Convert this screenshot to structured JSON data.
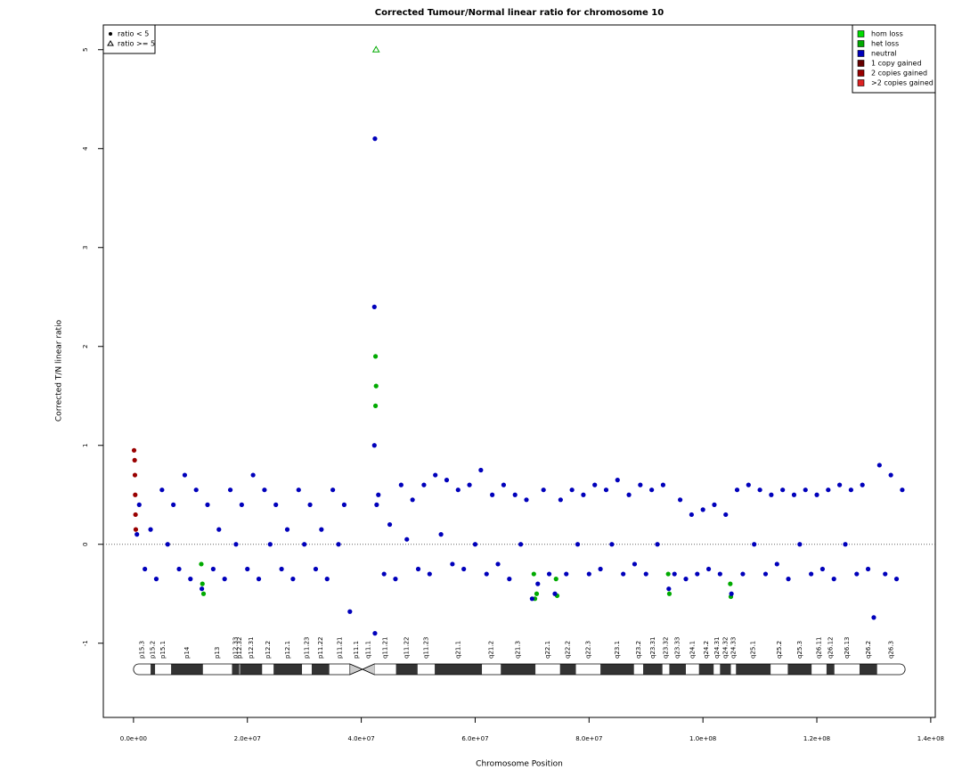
{
  "chart_data": {
    "type": "scatter",
    "title": "Corrected Tumour/Normal linear ratio for chromosome  10",
    "xlabel": "Chromosome Position",
    "ylabel": "Corrected T/N linear ratio",
    "xlim": [
      -5300000.0,
      140800000.0
    ],
    "ylim": [
      -1.75,
      5.25
    ],
    "xticks": [
      {
        "value": 0,
        "label": "0.0e+00"
      },
      {
        "value": 20000000.0,
        "label": "2.0e+07"
      },
      {
        "value": 40000000.0,
        "label": "4.0e+07"
      },
      {
        "value": 60000000.0,
        "label": "6.0e+07"
      },
      {
        "value": 80000000.0,
        "label": "8.0e+07"
      },
      {
        "value": 100000000.0,
        "label": "1.0e+08"
      },
      {
        "value": 120000000.0,
        "label": "1.2e+08"
      },
      {
        "value": 140000000.0,
        "label": "1.4e+08"
      }
    ],
    "yticks": [
      -1,
      0,
      1,
      2,
      3,
      4,
      5
    ],
    "hline": 0,
    "ratio_cap": 5,
    "symbol_legend": [
      {
        "label": "ratio < 5",
        "shape": "dot"
      },
      {
        "label": "ratio >= 5",
        "shape": "triangle"
      }
    ],
    "series": [
      {
        "name": "hom loss",
        "color": "#00dd00",
        "x": [],
        "values": []
      },
      {
        "name": "het loss",
        "color": "#00aa00",
        "x": [
          11900000.0,
          12100000.0,
          12300000.0,
          42500000.0,
          42500000.0,
          42600000.0,
          42600000.0,
          70300000.0,
          70500000.0,
          70800000.0,
          74200000.0,
          74400000.0,
          93900000.0,
          94100000.0,
          104800000.0,
          104900000.0
        ],
        "values": [
          -0.2,
          -0.4,
          -0.5,
          1.4,
          1.9,
          1.6,
          5,
          -0.3,
          -0.55,
          -0.5,
          -0.35,
          -0.52,
          -0.3,
          -0.5,
          -0.4,
          -0.53
        ]
      },
      {
        "name": "neutral",
        "color": "#0000bb",
        "x": [
          600000.0,
          1000000.0,
          2000000.0,
          3000000.0,
          4000000.0,
          5000000.0,
          6000000.0,
          7000000.0,
          8000000.0,
          9000000.0,
          10000000.0,
          11000000.0,
          12000000.0,
          13000000.0,
          14000000.0,
          15000000.0,
          16000000.0,
          17000000.0,
          18000000.0,
          19000000.0,
          20000000.0,
          21000000.0,
          22000000.0,
          23000000.0,
          24000000.0,
          25000000.0,
          26000000.0,
          27000000.0,
          28000000.0,
          29000000.0,
          30000000.0,
          31000000.0,
          32000000.0,
          33000000.0,
          34000000.0,
          35000000.0,
          36000000.0,
          37000000.0,
          38000000.0,
          42300000.0,
          42300000.0,
          42400000.0,
          42400000.0,
          42700000.0,
          43000000.0,
          44000000.0,
          45000000.0,
          46000000.0,
          47000000.0,
          48000000.0,
          49000000.0,
          50000000.0,
          51000000.0,
          52000000.0,
          53000000.0,
          54000000.0,
          55000000.0,
          56000000.0,
          57000000.0,
          58000000.0,
          59000000.0,
          60000000.0,
          61000000.0,
          62000000.0,
          63000000.0,
          64000000.0,
          65000000.0,
          66000000.0,
          67000000.0,
          68000000.0,
          69000000.0,
          70000000.0,
          71000000.0,
          72000000.0,
          73000000.0,
          74000000.0,
          75000000.0,
          76000000.0,
          77000000.0,
          78000000.0,
          79000000.0,
          80000000.0,
          81000000.0,
          82000000.0,
          83000000.0,
          84000000.0,
          85000000.0,
          86000000.0,
          87000000.0,
          88000000.0,
          89000000.0,
          90000000.0,
          91000000.0,
          92000000.0,
          93000000.0,
          94000000.0,
          95000000.0,
          96000000.0,
          97000000.0,
          98000000.0,
          99000000.0,
          100000000.0,
          101000000.0,
          102000000.0,
          103000000.0,
          104000000.0,
          105000000.0,
          106000000.0,
          107000000.0,
          108000000.0,
          109000000.0,
          110000000.0,
          111000000.0,
          112000000.0,
          113000000.0,
          114000000.0,
          115000000.0,
          116000000.0,
          117000000.0,
          118000000.0,
          119000000.0,
          120000000.0,
          121000000.0,
          122000000.0,
          123000000.0,
          124000000.0,
          125000000.0,
          126000000.0,
          127000000.0,
          128000000.0,
          129000000.0,
          130000000.0,
          131000000.0,
          132000000.0,
          133000000.0,
          134000000.0,
          135000000.0
        ],
        "values": [
          0.1,
          0.4,
          -0.25,
          0.15,
          -0.35,
          0.55,
          0,
          0.4,
          -0.25,
          0.7,
          -0.35,
          0.55,
          -0.45,
          0.4,
          -0.25,
          0.15,
          -0.35,
          0.55,
          0,
          0.4,
          -0.25,
          0.7,
          -0.35,
          0.55,
          0,
          0.4,
          -0.25,
          0.15,
          -0.35,
          0.55,
          0,
          0.4,
          -0.25,
          0.15,
          -0.35,
          0.55,
          0,
          0.4,
          -0.68,
          2.4,
          1.0,
          4.1,
          -0.9,
          0.4,
          0.5,
          -0.3,
          0.2,
          -0.35,
          0.6,
          0.05,
          0.45,
          -0.25,
          0.6,
          -0.3,
          0.7,
          0.1,
          0.65,
          -0.2,
          0.55,
          -0.25,
          0.6,
          0,
          0.75,
          -0.3,
          0.5,
          -0.2,
          0.6,
          -0.35,
          0.5,
          0,
          0.45,
          -0.55,
          -0.4,
          0.55,
          -0.3,
          -0.5,
          0.45,
          -0.3,
          0.55,
          0,
          0.5,
          -0.3,
          0.6,
          -0.25,
          0.55,
          0,
          0.65,
          -0.3,
          0.5,
          -0.2,
          0.6,
          -0.3,
          0.55,
          0,
          0.6,
          -0.45,
          -0.3,
          0.45,
          -0.35,
          0.3,
          -0.3,
          0.35,
          -0.25,
          0.4,
          -0.3,
          0.3,
          -0.5,
          0.55,
          -0.3,
          0.6,
          0,
          0.55,
          -0.3,
          0.5,
          -0.2,
          0.55,
          -0.35,
          0.5,
          0,
          0.55,
          -0.3,
          0.5,
          -0.25,
          0.55,
          -0.35,
          0.6,
          0,
          0.55,
          -0.3,
          0.6,
          -0.25,
          -0.74,
          0.8,
          -0.3,
          0.7,
          -0.35,
          0.55
        ]
      },
      {
        "name": "1 copy gained",
        "color": "#660000",
        "x": [],
        "values": []
      },
      {
        "name": "2 copies gained",
        "color": "#990000",
        "x": [
          100000.0,
          200000.0,
          250000.0,
          300000.0,
          350000.0,
          400000.0
        ],
        "values": [
          0.95,
          0.85,
          0.7,
          0.5,
          0.3,
          0.15
        ]
      },
      {
        "name": ">2 copies gained",
        "color": "#dd2222",
        "x": [],
        "values": []
      }
    ],
    "bands": [
      {
        "label": "p15.3",
        "start": 0,
        "end": 3000000.0,
        "color": "#ffffff"
      },
      {
        "label": "p15.2",
        "start": 3000000.0,
        "end": 3800000.0,
        "color": "#333333"
      },
      {
        "label": "p15.1",
        "start": 3800000.0,
        "end": 6600000.0,
        "color": "#ffffff"
      },
      {
        "label": "p14",
        "start": 6600000.0,
        "end": 12200000.0,
        "color": "#333333"
      },
      {
        "label": "p13",
        "start": 12200000.0,
        "end": 17300000.0,
        "color": "#ffffff"
      },
      {
        "label": "p12.33",
        "start": 17300000.0,
        "end": 18600000.0,
        "color": "#333333"
      },
      {
        "label": "p12.32",
        "start": 18600000.0,
        "end": 18700000.0,
        "color": "#ffffff"
      },
      {
        "label": "p12.31",
        "start": 18700000.0,
        "end": 22600000.0,
        "color": "#333333"
      },
      {
        "label": "p12.2",
        "start": 22600000.0,
        "end": 24600000.0,
        "color": "#ffffff"
      },
      {
        "label": "p12.1",
        "start": 24600000.0,
        "end": 29600000.0,
        "color": "#333333"
      },
      {
        "label": "p11.23",
        "start": 29600000.0,
        "end": 31300000.0,
        "color": "#ffffff"
      },
      {
        "label": "p11.22",
        "start": 31300000.0,
        "end": 34400000.0,
        "color": "#333333"
      },
      {
        "label": "p11.21",
        "start": 34400000.0,
        "end": 38000000.0,
        "color": "#ffffff"
      },
      {
        "label": "p11.1",
        "start": 38000000.0,
        "end": 40200000.0,
        "color": "#cccccc"
      },
      {
        "label": "q11.1",
        "start": 40200000.0,
        "end": 42300000.0,
        "color": "#cccccc"
      },
      {
        "label": "q11.21",
        "start": 42300000.0,
        "end": 46100000.0,
        "color": "#ffffff"
      },
      {
        "label": "q11.22",
        "start": 46100000.0,
        "end": 49900000.0,
        "color": "#333333"
      },
      {
        "label": "q11.23",
        "start": 49900000.0,
        "end": 52900000.0,
        "color": "#ffffff"
      },
      {
        "label": "q21.1",
        "start": 52900000.0,
        "end": 61200000.0,
        "color": "#333333"
      },
      {
        "label": "q21.2",
        "start": 61200000.0,
        "end": 64500000.0,
        "color": "#ffffff"
      },
      {
        "label": "q21.3",
        "start": 64500000.0,
        "end": 70600000.0,
        "color": "#333333"
      },
      {
        "label": "q22.1",
        "start": 70600000.0,
        "end": 74900000.0,
        "color": "#ffffff"
      },
      {
        "label": "q22.2",
        "start": 74900000.0,
        "end": 77700000.0,
        "color": "#333333"
      },
      {
        "label": "q22.3",
        "start": 77700000.0,
        "end": 82000000.0,
        "color": "#ffffff"
      },
      {
        "label": "q23.1",
        "start": 82000000.0,
        "end": 87900000.0,
        "color": "#333333"
      },
      {
        "label": "q23.2",
        "start": 87900000.0,
        "end": 89500000.0,
        "color": "#ffffff"
      },
      {
        "label": "q23.31",
        "start": 89500000.0,
        "end": 92900000.0,
        "color": "#333333"
      },
      {
        "label": "q23.32",
        "start": 92900000.0,
        "end": 94100000.0,
        "color": "#ffffff"
      },
      {
        "label": "q23.33",
        "start": 94100000.0,
        "end": 97000000.0,
        "color": "#333333"
      },
      {
        "label": "q24.1",
        "start": 97000000.0,
        "end": 99300000.0,
        "color": "#ffffff"
      },
      {
        "label": "q24.2",
        "start": 99300000.0,
        "end": 101900000.0,
        "color": "#333333"
      },
      {
        "label": "q24.31",
        "start": 101900000.0,
        "end": 103000000.0,
        "color": "#ffffff"
      },
      {
        "label": "q24.32",
        "start": 103000000.0,
        "end": 104900000.0,
        "color": "#333333"
      },
      {
        "label": "q24.33",
        "start": 104900000.0,
        "end": 105800000.0,
        "color": "#ffffff"
      },
      {
        "label": "q25.1",
        "start": 105800000.0,
        "end": 111900000.0,
        "color": "#333333"
      },
      {
        "label": "q25.2",
        "start": 111900000.0,
        "end": 114900000.0,
        "color": "#ffffff"
      },
      {
        "label": "q25.3",
        "start": 114900000.0,
        "end": 119100000.0,
        "color": "#333333"
      },
      {
        "label": "q26.11",
        "start": 119100000.0,
        "end": 121700000.0,
        "color": "#ffffff"
      },
      {
        "label": "q26.12",
        "start": 121700000.0,
        "end": 123100000.0,
        "color": "#333333"
      },
      {
        "label": "q26.13",
        "start": 123100000.0,
        "end": 127500000.0,
        "color": "#ffffff"
      },
      {
        "label": "q26.2",
        "start": 127500000.0,
        "end": 130600000.0,
        "color": "#333333"
      },
      {
        "label": "q26.3",
        "start": 130600000.0,
        "end": 135500000.0,
        "color": "#ffffff"
      }
    ]
  }
}
